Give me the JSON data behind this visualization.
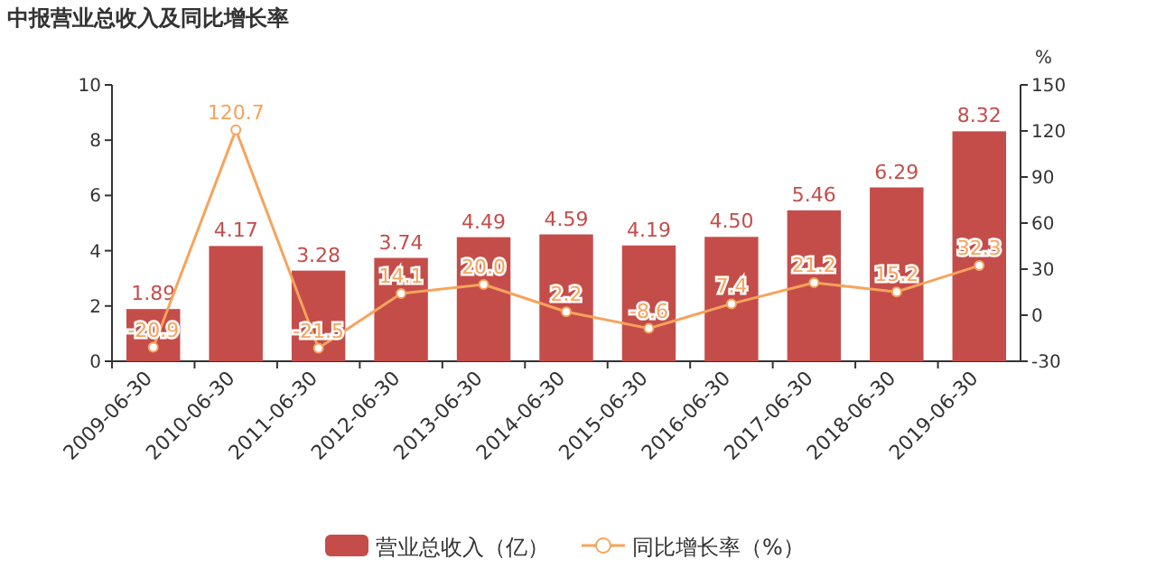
{
  "chart_data": {
    "type": "bar",
    "title": "中报营业总收入及同比增长率",
    "y2label": "%",
    "categories": [
      "2009-06-30",
      "2010-06-30",
      "2011-06-30",
      "2012-06-30",
      "2013-06-30",
      "2014-06-30",
      "2015-06-30",
      "2016-06-30",
      "2017-06-30",
      "2018-06-30",
      "2019-06-30"
    ],
    "series": [
      {
        "name": "营业总收入（亿）",
        "color": "#c44d4a",
        "values": [
          1.89,
          4.17,
          3.28,
          3.74,
          4.49,
          4.59,
          4.19,
          4.5,
          5.46,
          6.29,
          8.32
        ],
        "value_labels": [
          "1.89",
          "4.17",
          "3.28",
          "3.74",
          "4.49",
          "4.59",
          "4.19",
          "4.50",
          "5.46",
          "6.29",
          "8.32"
        ]
      },
      {
        "name": "同比增长率（%）",
        "type": "line",
        "axis": "y2",
        "color": "#f7a35c",
        "marker": "circle",
        "values": [
          -20.9,
          120.7,
          -21.5,
          14.1,
          20.0,
          2.2,
          -8.6,
          7.4,
          21.2,
          15.2,
          32.3
        ],
        "value_labels": [
          "-20.9",
          "120.7",
          "-21.5",
          "14.1",
          "20.0",
          "2.2",
          "-8.6",
          "7.4",
          "21.2",
          "15.2",
          "32.3"
        ]
      }
    ],
    "ylim": [
      0,
      10
    ],
    "yticks": [
      0,
      2,
      4,
      6,
      8,
      10
    ],
    "y2lim": [
      -30,
      150
    ],
    "y2ticks": [
      -30,
      0,
      30,
      60,
      90,
      120,
      150
    ],
    "grid": false,
    "legend": "bottom"
  }
}
